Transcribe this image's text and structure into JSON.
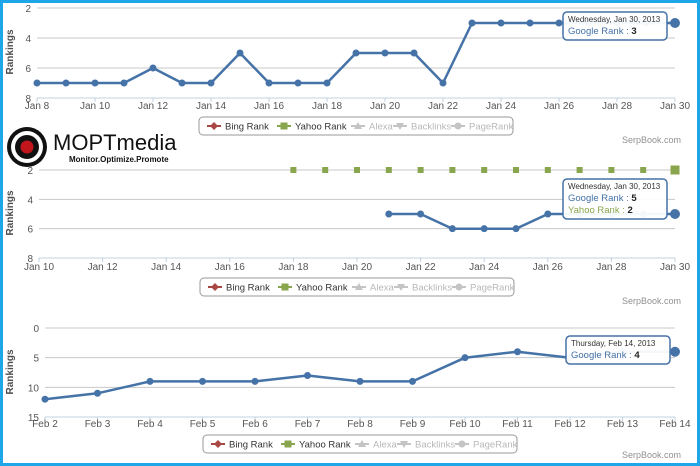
{
  "logo": {
    "brand": "MOPTmedia",
    "tagline": "Monitor.Optimize.Promote"
  },
  "chart_data": [
    {
      "type": "line",
      "title": "",
      "xlabel": "",
      "ylabel": "Rankings",
      "ylim": [
        8,
        2
      ],
      "y_ticks": [
        "2",
        "4",
        "6",
        "8"
      ],
      "x_ticks": [
        "Jan 8",
        "Jan 10",
        "Jan 12",
        "Jan 14",
        "Jan 16",
        "Jan 18",
        "Jan 20",
        "Jan 22",
        "Jan 24",
        "Jan 26",
        "Jan 28",
        "Jan 30"
      ],
      "x": [
        "Jan 8",
        "Jan 9",
        "Jan 10",
        "Jan 11",
        "Jan 12",
        "Jan 13",
        "Jan 14",
        "Jan 15",
        "Jan 16",
        "Jan 17",
        "Jan 18",
        "Jan 19",
        "Jan 20",
        "Jan 21",
        "Jan 22",
        "Jan 23",
        "Jan 24",
        "Jan 25",
        "Jan 26",
        "Jan 27",
        "Jan 28",
        "Jan 29",
        "Jan 30"
      ],
      "series": [
        {
          "name": "Google Rank",
          "color": "#4572a7",
          "values": [
            7,
            7,
            7,
            7,
            6,
            7,
            7,
            5,
            7,
            7,
            7,
            5,
            5,
            5,
            7,
            3,
            3,
            3,
            3,
            3,
            3,
            3,
            3
          ]
        }
      ],
      "tooltip": {
        "date": "Wednesday, Jan 30, 2013",
        "rows": [
          {
            "label": "Google Rank",
            "value": "3",
            "color": "#4572a7"
          }
        ]
      },
      "legend": [
        "Bing Rank",
        "Yahoo Rank",
        "Alexa",
        "Backlinks",
        "PageRank"
      ],
      "credit": "SerpBook.com",
      "grid": true
    },
    {
      "type": "line",
      "title": "",
      "xlabel": "",
      "ylabel": "Rankings",
      "ylim": [
        8,
        2
      ],
      "y_ticks": [
        "2",
        "4",
        "6",
        "8"
      ],
      "x_ticks": [
        "Jan 10",
        "Jan 12",
        "Jan 14",
        "Jan 16",
        "Jan 18",
        "Jan 20",
        "Jan 22",
        "Jan 24",
        "Jan 26",
        "Jan 28",
        "Jan 30"
      ],
      "x": [
        "Jan 10",
        "Jan 11",
        "Jan 12",
        "Jan 13",
        "Jan 14",
        "Jan 15",
        "Jan 16",
        "Jan 17",
        "Jan 18",
        "Jan 19",
        "Jan 20",
        "Jan 21",
        "Jan 22",
        "Jan 23",
        "Jan 24",
        "Jan 25",
        "Jan 26",
        "Jan 27",
        "Jan 28",
        "Jan 29",
        "Jan 30"
      ],
      "series": [
        {
          "name": "Google Rank",
          "color": "#4572a7",
          "values": [
            null,
            null,
            null,
            null,
            null,
            null,
            null,
            null,
            null,
            null,
            null,
            5,
            5,
            6,
            6,
            6,
            5,
            5,
            5,
            5,
            5
          ]
        },
        {
          "name": "Yahoo Rank",
          "color": "#89a54e",
          "values": [
            null,
            null,
            null,
            null,
            null,
            null,
            null,
            null,
            2,
            2,
            2,
            2,
            2,
            2,
            2,
            2,
            2,
            2,
            2,
            2,
            2
          ]
        }
      ],
      "tooltip": {
        "date": "Wednesday, Jan 30, 2013",
        "rows": [
          {
            "label": "Google Rank",
            "value": "5",
            "color": "#4572a7"
          },
          {
            "label": "Yahoo Rank",
            "value": "2",
            "color": "#89a54e"
          }
        ]
      },
      "legend": [
        "Bing Rank",
        "Yahoo Rank",
        "Alexa",
        "Backlinks",
        "PageRank"
      ],
      "credit": "SerpBook.com",
      "grid": true
    },
    {
      "type": "line",
      "title": "",
      "xlabel": "",
      "ylabel": "Rankings",
      "ylim": [
        15,
        0
      ],
      "y_ticks": [
        "0",
        "5",
        "10",
        "15"
      ],
      "x_ticks": [
        "Feb 2",
        "Feb 3",
        "Feb 4",
        "Feb 5",
        "Feb 6",
        "Feb 7",
        "Feb 8",
        "Feb 9",
        "Feb 10",
        "Feb 11",
        "Feb 12",
        "Feb 13",
        "Feb 14"
      ],
      "x": [
        "Feb 2",
        "Feb 3",
        "Feb 4",
        "Feb 5",
        "Feb 6",
        "Feb 7",
        "Feb 8",
        "Feb 9",
        "Feb 10",
        "Feb 11",
        "Feb 12",
        "Feb 13",
        "Feb 14"
      ],
      "series": [
        {
          "name": "Google Rank",
          "color": "#4572a7",
          "values": [
            12,
            11,
            9,
            9,
            9,
            8,
            9,
            9,
            5,
            4,
            5,
            4,
            4
          ]
        }
      ],
      "tooltip": {
        "date": "Thursday, Feb 14, 2013",
        "rows": [
          {
            "label": "Google Rank",
            "value": "4",
            "color": "#4572a7"
          }
        ]
      },
      "legend": [
        "Bing Rank",
        "Yahoo Rank",
        "Alexa",
        "Backlinks",
        "PageRank"
      ],
      "credit": "SerpBook.com",
      "grid": true
    }
  ]
}
